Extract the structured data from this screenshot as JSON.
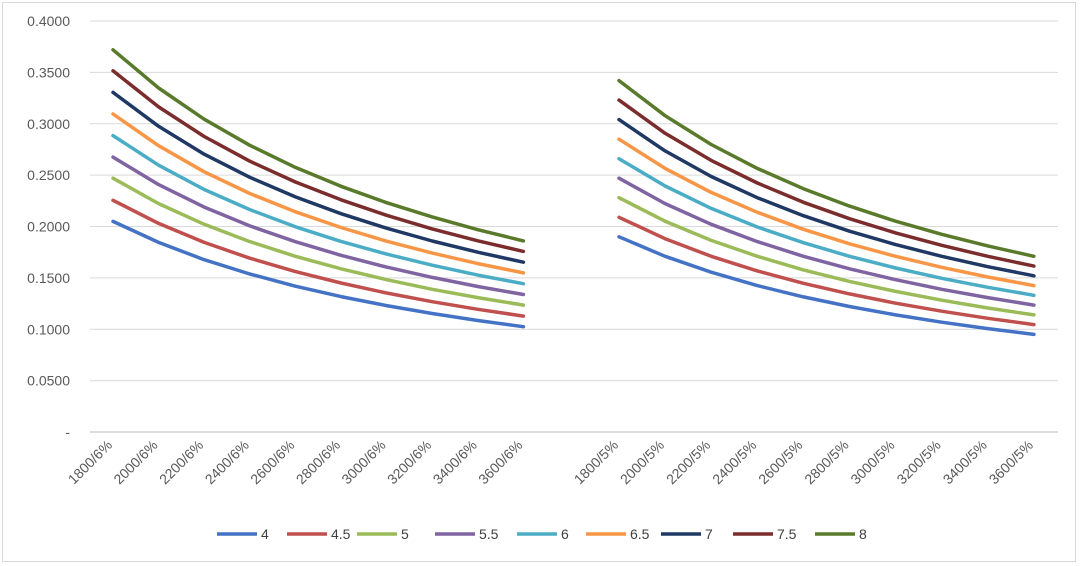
{
  "chart_data": {
    "type": "line",
    "y_axis": {
      "min": 0,
      "max": 0.4,
      "step": 0.05,
      "tick_labels": [
        "-",
        "0.0500",
        "0.1000",
        "0.1500",
        "0.2000",
        "0.2500",
        "0.3000",
        "0.3500",
        "0.4000"
      ]
    },
    "grid": true,
    "legend_position": "bottom",
    "series_colors": {
      "4": "#4472c4",
      "4.5": "#c0504d",
      "5": "#9bbb59",
      "5.5": "#8064a2",
      "6": "#4bacc6",
      "6.5": "#f79646",
      "7": "#1f3864",
      "7.5": "#7b2c2c",
      "8": "#5a7a2b"
    },
    "panels": [
      {
        "categories": [
          "1800/6%",
          "2000/6%",
          "2200/6%",
          "2400/6%",
          "2600/6%",
          "2800/6%",
          "3000/6%",
          "3200/6%",
          "3400/6%",
          "3600/6%"
        ],
        "series": [
          {
            "name": "4",
            "values": [
              0.205,
              0.1845,
              0.1677,
              0.1538,
              0.1419,
              0.1318,
              0.123,
              0.1153,
              0.1085,
              0.1025
            ]
          },
          {
            "name": "4.5",
            "values": [
              0.2255,
              0.203,
              0.1845,
              0.1691,
              0.1561,
              0.145,
              0.1353,
              0.1268,
              0.1194,
              0.1128
            ]
          },
          {
            "name": "5",
            "values": [
              0.247,
              0.2223,
              0.2021,
              0.1853,
              0.171,
              0.1588,
              0.1482,
              0.1389,
              0.1308,
              0.1235
            ]
          },
          {
            "name": "5.5",
            "values": [
              0.2675,
              0.2408,
              0.2189,
              0.2006,
              0.1852,
              0.172,
              0.1605,
              0.1505,
              0.1416,
              0.1338
            ]
          },
          {
            "name": "6",
            "values": [
              0.2885,
              0.2597,
              0.236,
              0.2164,
              0.1997,
              0.1855,
              0.1731,
              0.1623,
              0.1527,
              0.1443
            ]
          },
          {
            "name": "6.5",
            "values": [
              0.3095,
              0.2786,
              0.2532,
              0.2321,
              0.2143,
              0.199,
              0.1857,
              0.1741,
              0.1639,
              0.1548
            ]
          },
          {
            "name": "7",
            "values": [
              0.3305,
              0.2975,
              0.2704,
              0.2479,
              0.2288,
              0.2125,
              0.1983,
              0.1859,
              0.175,
              0.1653
            ]
          },
          {
            "name": "7.5",
            "values": [
              0.3515,
              0.3164,
              0.2876,
              0.2636,
              0.2433,
              0.226,
              0.2109,
              0.1977,
              0.1861,
              0.1758
            ]
          },
          {
            "name": "8",
            "values": [
              0.372,
              0.3348,
              0.3044,
              0.279,
              0.2575,
              0.2391,
              0.2232,
              0.2093,
              0.1969,
              0.186
            ]
          }
        ]
      },
      {
        "categories": [
          "1800/5%",
          "2000/5%",
          "2200/5%",
          "2400/5%",
          "2600/5%",
          "2800/5%",
          "3000/5%",
          "3200/5%",
          "3400/5%",
          "3600/5%"
        ],
        "series": [
          {
            "name": "4",
            "values": [
              0.19,
              0.171,
              0.1555,
              0.1425,
              0.1315,
              0.1221,
              0.114,
              0.1069,
              0.1006,
              0.095
            ]
          },
          {
            "name": "4.5",
            "values": [
              0.209,
              0.1881,
              0.171,
              0.1568,
              0.1447,
              0.1344,
              0.1254,
              0.1176,
              0.1107,
              0.1045
            ]
          },
          {
            "name": "5",
            "values": [
              0.228,
              0.2052,
              0.1865,
              0.171,
              0.1578,
              0.1466,
              0.1368,
              0.1283,
              0.1207,
              0.114
            ]
          },
          {
            "name": "5.5",
            "values": [
              0.247,
              0.2223,
              0.2021,
              0.1853,
              0.171,
              0.1588,
              0.1482,
              0.1389,
              0.1308,
              0.1235
            ]
          },
          {
            "name": "6",
            "values": [
              0.266,
              0.2394,
              0.2176,
              0.1995,
              0.1842,
              0.171,
              0.1596,
              0.1496,
              0.1408,
              0.133
            ]
          },
          {
            "name": "6.5",
            "values": [
              0.285,
              0.2565,
              0.2332,
              0.2138,
              0.1973,
              0.1832,
              0.171,
              0.1603,
              0.1509,
              0.1425
            ]
          },
          {
            "name": "7",
            "values": [
              0.304,
              0.2736,
              0.2487,
              0.228,
              0.2105,
              0.1954,
              0.1824,
              0.171,
              0.1609,
              0.152
            ]
          },
          {
            "name": "7.5",
            "values": [
              0.323,
              0.2907,
              0.2643,
              0.2423,
              0.2236,
              0.2076,
              0.1938,
              0.1817,
              0.171,
              0.1615
            ]
          },
          {
            "name": "8",
            "values": [
              0.342,
              0.3078,
              0.2798,
              0.2565,
              0.2368,
              0.2199,
              0.2052,
              0.1924,
              0.1811,
              0.171
            ]
          }
        ]
      }
    ],
    "legend": [
      "4",
      "4.5",
      "5",
      "5.5",
      "6",
      "6.5",
      "7",
      "7.5",
      "8"
    ]
  }
}
